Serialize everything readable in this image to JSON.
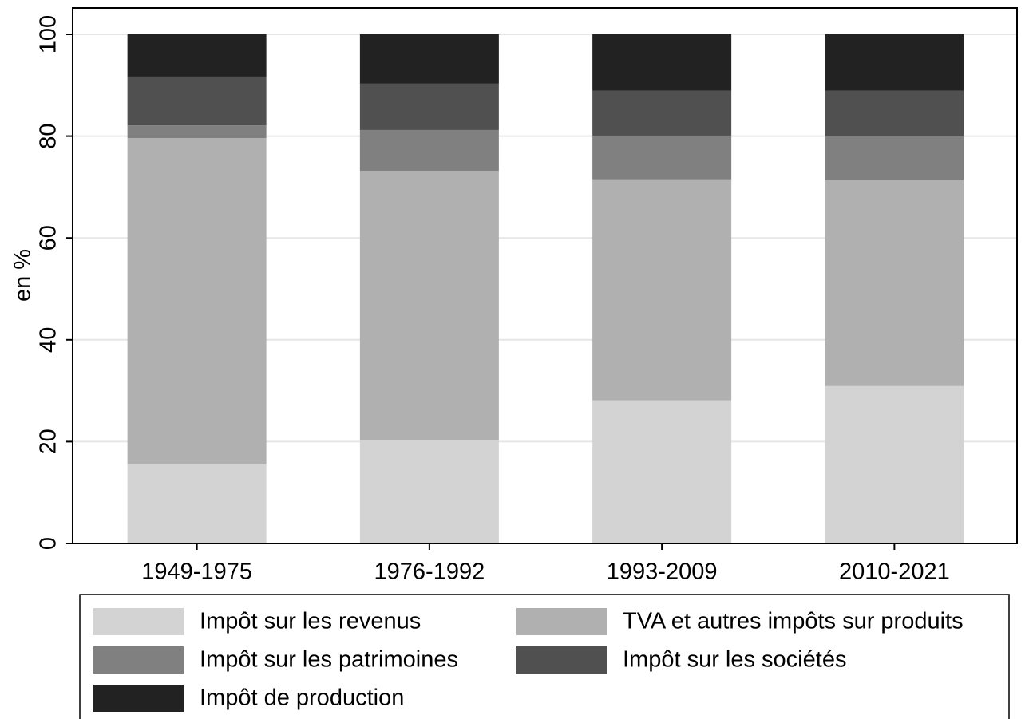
{
  "chart_data": {
    "type": "stacked_bar",
    "categories": [
      "1949-1975",
      "1976-1992",
      "1993-2009",
      "2010-2021"
    ],
    "ylabel": "en %",
    "ylim": [
      0,
      100
    ],
    "yticks": [
      0,
      20,
      40,
      60,
      80,
      100
    ],
    "grid": true,
    "series": [
      {
        "name": "Impôt sur les revenus",
        "color": "#d3d3d3",
        "values": [
          15.5,
          20.2,
          28.1,
          30.9
        ]
      },
      {
        "name": "TVA et autres impôts sur produits",
        "color": "#b0b0b0",
        "values": [
          64.1,
          53.0,
          43.4,
          40.4
        ]
      },
      {
        "name": "Impôt sur les patrimoines",
        "color": "#808080",
        "values": [
          2.5,
          8.0,
          8.6,
          8.6
        ]
      },
      {
        "name": "Impôt sur les sociétés",
        "color": "#505050",
        "values": [
          9.6,
          9.1,
          8.8,
          9.0
        ]
      },
      {
        "name": "Impôt de production",
        "color": "#222222",
        "values": [
          8.3,
          9.7,
          11.1,
          11.1
        ]
      }
    ]
  }
}
